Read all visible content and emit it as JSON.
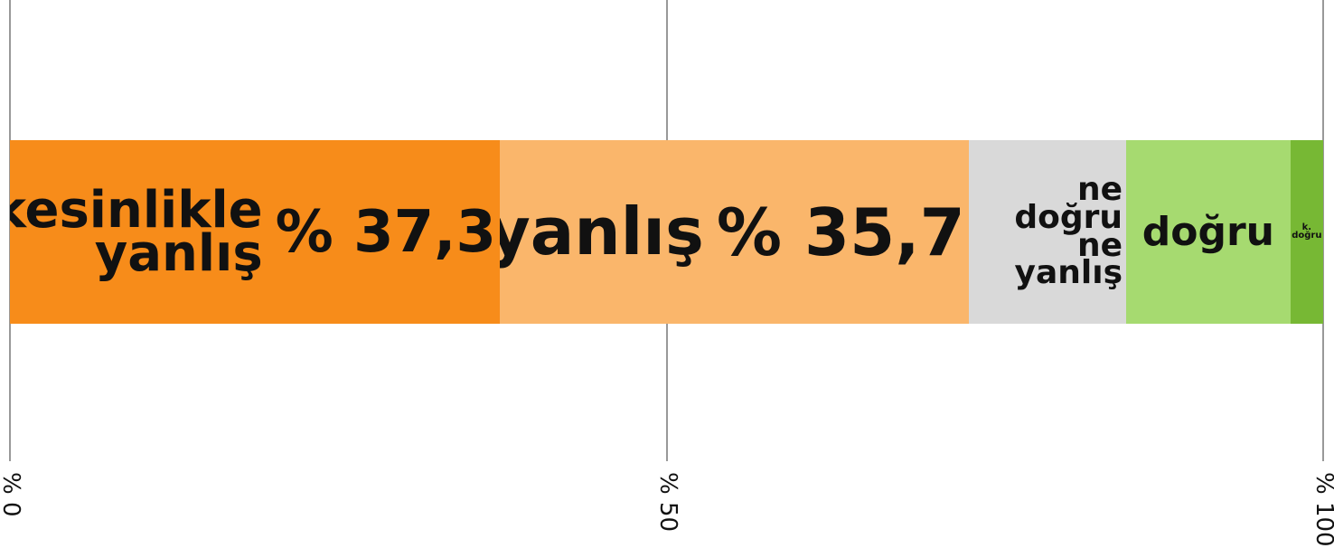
{
  "chart_data": {
    "type": "stacked-bar-horizontal",
    "categories": [
      "kesinlikle yanlış",
      "yanlış",
      "ne doğru ne yanlış",
      "doğru",
      "k. doğru"
    ],
    "values": [
      37.3,
      35.7,
      12,
      12.5,
      2.5
    ],
    "value_labels": [
      "% 37,3",
      "% 35,7",
      null,
      null,
      null
    ],
    "colors": [
      "#f78c1a",
      "#fab66b",
      "#d9d9d9",
      "#a6da70",
      "#77b834"
    ],
    "xlim": [
      0,
      100
    ],
    "xticks": [
      {
        "value": 0,
        "label": "% 0"
      },
      {
        "value": 50,
        "label": "% 50"
      },
      {
        "value": 100,
        "label": "% 100"
      }
    ],
    "grid": true
  }
}
